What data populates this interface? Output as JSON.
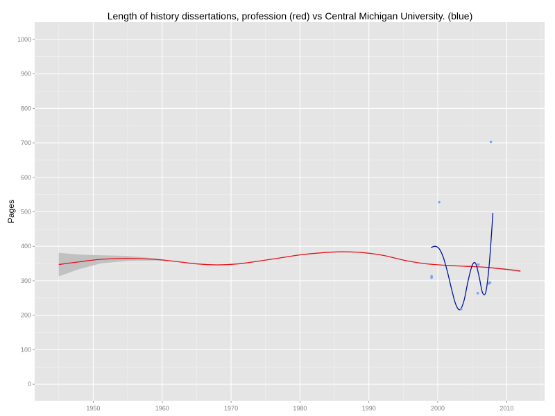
{
  "chart_data": {
    "type": "line",
    "title": "Length of history dissertations, profession (red) vs Central Michigan University. (blue)",
    "xlabel": "",
    "ylabel": "Pages",
    "xlim": [
      1941.5,
      2015.5
    ],
    "ylim": [
      -48,
      1050
    ],
    "x_ticks": [
      1950,
      1960,
      1970,
      1980,
      1990,
      2000,
      2010
    ],
    "y_ticks": [
      0,
      100,
      200,
      300,
      400,
      500,
      600,
      700,
      800,
      900,
      1000
    ],
    "grid": true,
    "legend": "none",
    "colors": {
      "panel_bg": "#e5e5e5",
      "grid_major": "#ffffff",
      "grid_minor": "#f2f2f2",
      "profession": "#e8141c",
      "profession_band": "#bdbdbd",
      "cmu": "#00159a",
      "cmu_points": "#6f9ff0"
    },
    "series": [
      {
        "key": "profession",
        "kind": "smooth",
        "x": [
          1945,
          1948,
          1951,
          1955,
          1959,
          1962,
          1965,
          1968,
          1971,
          1974,
          1977,
          1980,
          1983,
          1986,
          1989,
          1992,
          1995,
          1998,
          2001,
          2004,
          2007,
          2010,
          2012
        ],
        "y": [
          347,
          355,
          362,
          365,
          362,
          356,
          349,
          346,
          349,
          357,
          366,
          375,
          381,
          384,
          382,
          374,
          360,
          350,
          345,
          342,
          339,
          333,
          328
        ],
        "band_upper": [
          381,
          376,
          374,
          372,
          365,
          357,
          350,
          347,
          350,
          358,
          367,
          376,
          382,
          385,
          383,
          375,
          361,
          351,
          346,
          343,
          340,
          335,
          331
        ],
        "band_lower": [
          313,
          334,
          350,
          358,
          359,
          355,
          348,
          345,
          348,
          356,
          365,
          374,
          380,
          383,
          381,
          373,
          359,
          349,
          344,
          341,
          338,
          331,
          325
        ]
      },
      {
        "key": "cmu",
        "kind": "smooth",
        "x": [
          1999,
          1999.6,
          2000.2,
          2000.8,
          2001.4,
          2002,
          2002.6,
          2003.2,
          2003.8,
          2004.4,
          2005,
          2005.5,
          2006,
          2006.5,
          2007,
          2007.5,
          2008
        ],
        "y": [
          396,
          400,
          393,
          368,
          326,
          276,
          232,
          216,
          242,
          300,
          345,
          350,
          312,
          265,
          270,
          355,
          497
        ]
      }
    ],
    "points": {
      "key": "cmu",
      "x": [
        1999.1,
        1999.1,
        2000.2,
        2003.4,
        2005.8,
        2005.9,
        2007.4,
        2007.6,
        2007.7
      ],
      "y": [
        313,
        309,
        528,
        218,
        264,
        347,
        292,
        295,
        703
      ]
    }
  }
}
